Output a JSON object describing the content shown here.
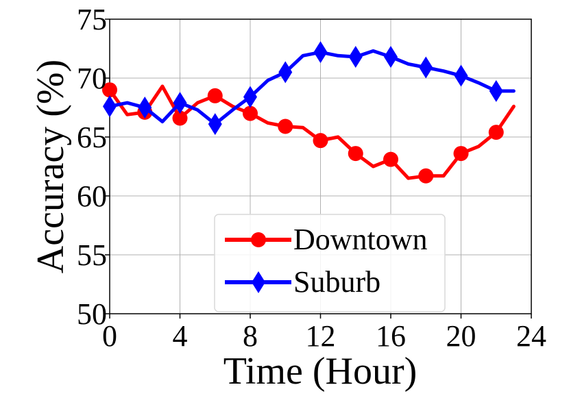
{
  "chart_data": {
    "type": "line",
    "xlabel": "Time (Hour)",
    "ylabel": "Accuracy (%)",
    "xlim": [
      0,
      24
    ],
    "ylim": [
      50,
      75
    ],
    "xticks": [
      0,
      4,
      8,
      12,
      16,
      20,
      24
    ],
    "yticks": [
      50,
      55,
      60,
      65,
      70,
      75
    ],
    "grid": true,
    "legend_position": "lower-center",
    "series": [
      {
        "name": "Downtown",
        "color": "#ff0000",
        "marker": "circle",
        "x": [
          0,
          1,
          2,
          3,
          4,
          5,
          6,
          7,
          8,
          9,
          10,
          11,
          12,
          13,
          14,
          15,
          16,
          17,
          18,
          19,
          20,
          21,
          22,
          23
        ],
        "y": [
          69.0,
          66.9,
          67.1,
          69.3,
          66.6,
          67.9,
          68.5,
          67.6,
          67.0,
          66.2,
          65.9,
          65.8,
          64.7,
          65.0,
          63.6,
          62.5,
          63.1,
          61.5,
          61.7,
          61.7,
          63.6,
          64.2,
          65.4,
          67.6
        ],
        "marker_x": [
          0,
          2,
          4,
          6,
          8,
          10,
          12,
          14,
          16,
          18,
          20,
          22
        ]
      },
      {
        "name": "Suburb",
        "color": "#0000ff",
        "marker": "diamond",
        "x": [
          0,
          1,
          2,
          3,
          4,
          5,
          6,
          7,
          8,
          9,
          10,
          11,
          12,
          13,
          14,
          15,
          16,
          17,
          18,
          19,
          20,
          21,
          22,
          23
        ],
        "y": [
          67.6,
          67.9,
          67.5,
          66.3,
          67.9,
          67.3,
          66.1,
          67.3,
          68.4,
          69.8,
          70.5,
          71.9,
          72.2,
          71.9,
          71.8,
          72.3,
          71.8,
          71.2,
          70.9,
          70.6,
          70.2,
          69.6,
          68.9,
          68.9
        ],
        "marker_x": [
          0,
          2,
          4,
          6,
          8,
          10,
          12,
          14,
          16,
          18,
          20,
          22
        ]
      }
    ]
  }
}
